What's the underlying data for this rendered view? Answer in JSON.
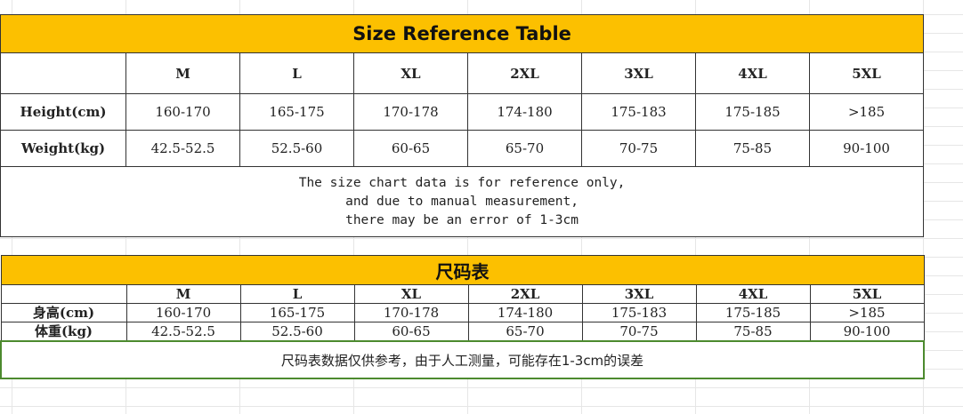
{
  "english_table": {
    "title": "Size Reference Table",
    "sizes": [
      "M",
      "L",
      "XL",
      "2XL",
      "3XL",
      "4XL",
      "5XL"
    ],
    "rows": [
      {
        "label": "Height(cm)",
        "values": [
          "160-170",
          "165-175",
          "170-178",
          "174-180",
          "175-183",
          "175-185",
          ">185"
        ]
      },
      {
        "label": "Weight(kg)",
        "values": [
          "42.5-52.5",
          "52.5-60",
          "60-65",
          "65-70",
          "70-75",
          "75-85",
          "90-100"
        ]
      }
    ],
    "note_lines": [
      "The size chart data is for reference only,",
      "and due to manual measurement,",
      "there may be an error of 1-3cm"
    ]
  },
  "chinese_table": {
    "title": "尺码表",
    "sizes": [
      "M",
      "L",
      "XL",
      "2XL",
      "3XL",
      "4XL",
      "5XL"
    ],
    "rows": [
      {
        "label": "身高(cm)",
        "values": [
          "160-170",
          "165-175",
          "170-178",
          "174-180",
          "175-183",
          "175-185",
          ">185"
        ]
      },
      {
        "label": "体重(kg)",
        "values": [
          "42.5-52.5",
          "52.5-60",
          "60-65",
          "65-70",
          "70-75",
          "75-85",
          "90-100"
        ]
      }
    ],
    "note": "尺码表数据仅供参考，由于人工测量，可能存在1-3cm的误差"
  },
  "colors": {
    "header_fill": "#fcc000",
    "note_border": "#4c8a2e"
  }
}
